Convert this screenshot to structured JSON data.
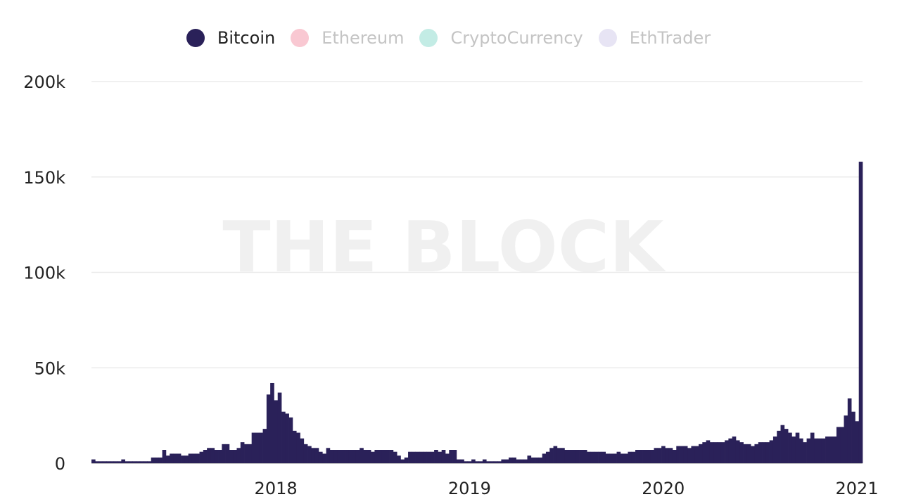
{
  "chart_data": {
    "type": "bar",
    "watermark": "THE BLOCK",
    "legend": [
      {
        "name": "Bitcoin",
        "color": "#2a2159",
        "active": true
      },
      {
        "name": "Ethereum",
        "color": "#f9c8d2",
        "active": false
      },
      {
        "name": "CryptoCurrency",
        "color": "#c3ece5",
        "active": false
      },
      {
        "name": "EthTrader",
        "color": "#e7e4f4",
        "active": false
      }
    ],
    "y_ticks": [
      {
        "value": 0,
        "label": "0"
      },
      {
        "value": 50000,
        "label": "50k"
      },
      {
        "value": 100000,
        "label": "100k"
      },
      {
        "value": 150000,
        "label": "150k"
      },
      {
        "value": 200000,
        "label": "200k"
      }
    ],
    "x_ticks": [
      {
        "index": 49,
        "label": "2018"
      },
      {
        "index": 101,
        "label": "2019"
      },
      {
        "index": 153,
        "label": "2020"
      },
      {
        "index": 205,
        "label": "2021"
      }
    ],
    "ylim": [
      0,
      200000
    ],
    "grid": true,
    "series": [
      {
        "name": "Bitcoin",
        "color": "#2a2159",
        "values": [
          2000,
          1000,
          1000,
          1000,
          1000,
          1000,
          1000,
          1000,
          2000,
          1000,
          1000,
          1000,
          1000,
          1000,
          1000,
          1000,
          3000,
          3000,
          3000,
          7000,
          4000,
          5000,
          5000,
          5000,
          4000,
          4000,
          5000,
          5000,
          5000,
          6000,
          7000,
          8000,
          8000,
          7000,
          7000,
          10000,
          10000,
          7000,
          7000,
          8000,
          11000,
          10000,
          10000,
          16000,
          16000,
          16000,
          18000,
          36000,
          42000,
          33000,
          37000,
          27000,
          26000,
          24000,
          17000,
          16000,
          13000,
          10000,
          9000,
          8000,
          8000,
          6000,
          5000,
          8000,
          7000,
          7000,
          7000,
          7000,
          7000,
          7000,
          7000,
          7000,
          8000,
          7000,
          7000,
          6000,
          7000,
          7000,
          7000,
          7000,
          7000,
          6000,
          4000,
          2000,
          3000,
          6000,
          6000,
          6000,
          6000,
          6000,
          6000,
          6000,
          7000,
          6000,
          7000,
          5000,
          7000,
          7000,
          2000,
          2000,
          1000,
          1000,
          2000,
          1000,
          1000,
          2000,
          1000,
          1000,
          1000,
          1000,
          2000,
          2000,
          3000,
          3000,
          2000,
          2000,
          2000,
          4000,
          3000,
          3000,
          3000,
          5000,
          6000,
          8000,
          9000,
          8000,
          8000,
          7000,
          7000,
          7000,
          7000,
          7000,
          7000,
          6000,
          6000,
          6000,
          6000,
          6000,
          5000,
          5000,
          5000,
          6000,
          5000,
          5000,
          6000,
          6000,
          7000,
          7000,
          7000,
          7000,
          7000,
          8000,
          8000,
          9000,
          8000,
          8000,
          7000,
          9000,
          9000,
          9000,
          8000,
          9000,
          9000,
          10000,
          11000,
          12000,
          11000,
          11000,
          11000,
          11000,
          12000,
          13000,
          14000,
          12000,
          11000,
          10000,
          10000,
          9000,
          10000,
          11000,
          11000,
          11000,
          12000,
          14000,
          17000,
          20000,
          18000,
          16000,
          14000,
          16000,
          13000,
          11000,
          13000,
          16000,
          13000,
          13000,
          13000,
          14000,
          14000,
          14000,
          19000,
          19000,
          25000,
          34000,
          27000,
          22000,
          158000
        ]
      }
    ]
  }
}
